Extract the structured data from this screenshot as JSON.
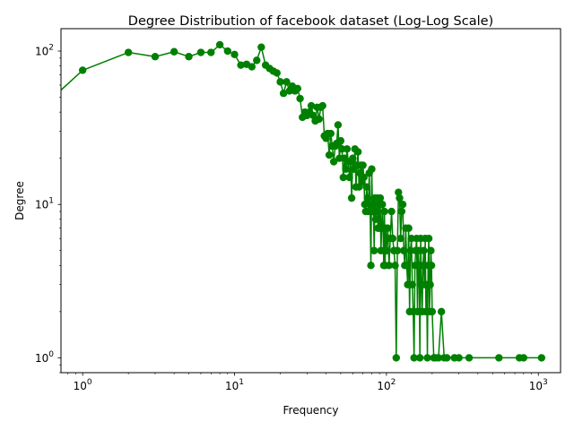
{
  "chart_data": {
    "type": "line",
    "title": "Degree Distribution of facebook dataset (Log-Log Scale)",
    "xlabel": "Frequency",
    "ylabel": "Degree",
    "xscale": "log",
    "yscale": "log",
    "xlim": [
      0.72,
      1400
    ],
    "ylim": [
      0.8,
      140
    ],
    "xticks": [
      {
        "base": "10",
        "exp": "0",
        "value": 1
      },
      {
        "base": "10",
        "exp": "1",
        "value": 10
      },
      {
        "base": "10",
        "exp": "2",
        "value": 100
      },
      {
        "base": "10",
        "exp": "3",
        "value": 1000
      }
    ],
    "yticks": [
      {
        "base": "10",
        "exp": "0",
        "value": 1
      },
      {
        "base": "10",
        "exp": "1",
        "value": 10
      },
      {
        "base": "10",
        "exp": "2",
        "value": 100
      }
    ],
    "grid": false,
    "legend": "none",
    "color": "#008000",
    "marker": "circle",
    "series": [
      {
        "points": [
          [
            0.5,
            40
          ],
          [
            1,
            75
          ],
          [
            2,
            98
          ],
          [
            3,
            92
          ],
          [
            4,
            99
          ],
          [
            5,
            92
          ],
          [
            6,
            98
          ],
          [
            7,
            98
          ],
          [
            8,
            110
          ],
          [
            9,
            100
          ],
          [
            10,
            95
          ],
          [
            11,
            81
          ],
          [
            12,
            82
          ],
          [
            13,
            79
          ],
          [
            14,
            87
          ],
          [
            15,
            106
          ],
          [
            16,
            81
          ],
          [
            17,
            77
          ],
          [
            18,
            74
          ],
          [
            19,
            72
          ],
          [
            20,
            63
          ],
          [
            21,
            53
          ],
          [
            22,
            63
          ],
          [
            23,
            55
          ],
          [
            24,
            59
          ],
          [
            25,
            55
          ],
          [
            26,
            57
          ],
          [
            27,
            49
          ],
          [
            28,
            37
          ],
          [
            29,
            40
          ],
          [
            30,
            38
          ],
          [
            31,
            40
          ],
          [
            32,
            44
          ],
          [
            33,
            38
          ],
          [
            34,
            35
          ],
          [
            35,
            43
          ],
          [
            36,
            36
          ],
          [
            37,
            43
          ],
          [
            38,
            44
          ],
          [
            39,
            28
          ],
          [
            40,
            27
          ],
          [
            41,
            29
          ],
          [
            42,
            21
          ],
          [
            43,
            29
          ],
          [
            44,
            24
          ],
          [
            45,
            19
          ],
          [
            46,
            24
          ],
          [
            47,
            25
          ],
          [
            48,
            33
          ],
          [
            49,
            20
          ],
          [
            50,
            26
          ],
          [
            51,
            23
          ],
          [
            52,
            15
          ],
          [
            53,
            20
          ],
          [
            54,
            17
          ],
          [
            55,
            23
          ],
          [
            56,
            19
          ],
          [
            57,
            15
          ],
          [
            58,
            19
          ],
          [
            59,
            11
          ],
          [
            60,
            20
          ],
          [
            61,
            17
          ],
          [
            62,
            23
          ],
          [
            63,
            13
          ],
          [
            64,
            18
          ],
          [
            65,
            22
          ],
          [
            66,
            13
          ],
          [
            67,
            16
          ],
          [
            68,
            18
          ],
          [
            69,
            14
          ],
          [
            70,
            18
          ],
          [
            71,
            15
          ],
          [
            72,
            10
          ],
          [
            73,
            9
          ],
          [
            74,
            13
          ],
          [
            75,
            11
          ],
          [
            76,
            9
          ],
          [
            77,
            16
          ],
          [
            78,
            10
          ],
          [
            79,
            4
          ],
          [
            80,
            17
          ],
          [
            81,
            9
          ],
          [
            82,
            10
          ],
          [
            83,
            5
          ],
          [
            84,
            11
          ],
          [
            85,
            8
          ],
          [
            86,
            9
          ],
          [
            87,
            11
          ],
          [
            88,
            7
          ],
          [
            89,
            10
          ],
          [
            90,
            7
          ],
          [
            91,
            11
          ],
          [
            92,
            5
          ],
          [
            93,
            7
          ],
          [
            94,
            10
          ],
          [
            95,
            7
          ],
          [
            96,
            4
          ],
          [
            97,
            9
          ],
          [
            98,
            4
          ],
          [
            99,
            7
          ],
          [
            100,
            5
          ],
          [
            102,
            7
          ],
          [
            104,
            4
          ],
          [
            106,
            6
          ],
          [
            108,
            9
          ],
          [
            110,
            6
          ],
          [
            112,
            5
          ],
          [
            114,
            4
          ],
          [
            116,
            1
          ],
          [
            118,
            5
          ],
          [
            120,
            12
          ],
          [
            122,
            11
          ],
          [
            124,
            6
          ],
          [
            126,
            9
          ],
          [
            128,
            10
          ],
          [
            130,
            5
          ],
          [
            132,
            4
          ],
          [
            134,
            7
          ],
          [
            136,
            4
          ],
          [
            138,
            3
          ],
          [
            140,
            7
          ],
          [
            142,
            2
          ],
          [
            144,
            5
          ],
          [
            146,
            6
          ],
          [
            148,
            3
          ],
          [
            150,
            2
          ],
          [
            152,
            1
          ],
          [
            154,
            4
          ],
          [
            156,
            5
          ],
          [
            158,
            6
          ],
          [
            160,
            2
          ],
          [
            162,
            5
          ],
          [
            164,
            4
          ],
          [
            166,
            1
          ],
          [
            168,
            6
          ],
          [
            170,
            3
          ],
          [
            172,
            2
          ],
          [
            174,
            4
          ],
          [
            176,
            5
          ],
          [
            178,
            3
          ],
          [
            180,
            6
          ],
          [
            182,
            2
          ],
          [
            184,
            3
          ],
          [
            186,
            1
          ],
          [
            188,
            4
          ],
          [
            190,
            6
          ],
          [
            192,
            2
          ],
          [
            194,
            3
          ],
          [
            196,
            5
          ],
          [
            198,
            4
          ],
          [
            200,
            2
          ],
          [
            205,
            1
          ],
          [
            210,
            1
          ],
          [
            220,
            1
          ],
          [
            230,
            2
          ],
          [
            240,
            1
          ],
          [
            250,
            1
          ],
          [
            280,
            1
          ],
          [
            300,
            1
          ],
          [
            350,
            1
          ],
          [
            550,
            1
          ],
          [
            750,
            1
          ],
          [
            800,
            1
          ],
          [
            1050,
            1
          ]
        ]
      }
    ]
  }
}
